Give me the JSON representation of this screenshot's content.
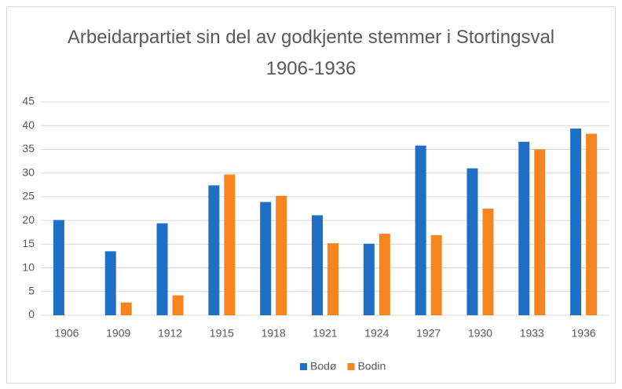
{
  "chart_data": {
    "type": "bar",
    "title": "Arbeidarpartiet sin del av godkjente stemmer i Stortingsval 1906-1936",
    "categories": [
      "1906",
      "1909",
      "1912",
      "1915",
      "1918",
      "1921",
      "1924",
      "1927",
      "1930",
      "1933",
      "1936"
    ],
    "series": [
      {
        "name": "Bodø",
        "color": "#1f6fc5",
        "values": [
          20.1,
          13.5,
          19.4,
          27.4,
          23.9,
          21.1,
          15.1,
          35.8,
          31.0,
          36.6,
          39.4
        ]
      },
      {
        "name": "Bodin",
        "color": "#f7851f",
        "values": [
          null,
          2.7,
          4.2,
          29.7,
          25.2,
          15.2,
          17.2,
          16.9,
          22.5,
          35.0,
          38.3
        ]
      }
    ],
    "ylim": [
      0,
      45
    ],
    "yticks": [
      0,
      5,
      10,
      15,
      20,
      25,
      30,
      35,
      40,
      45
    ],
    "grid": true,
    "legend": "bottom"
  }
}
